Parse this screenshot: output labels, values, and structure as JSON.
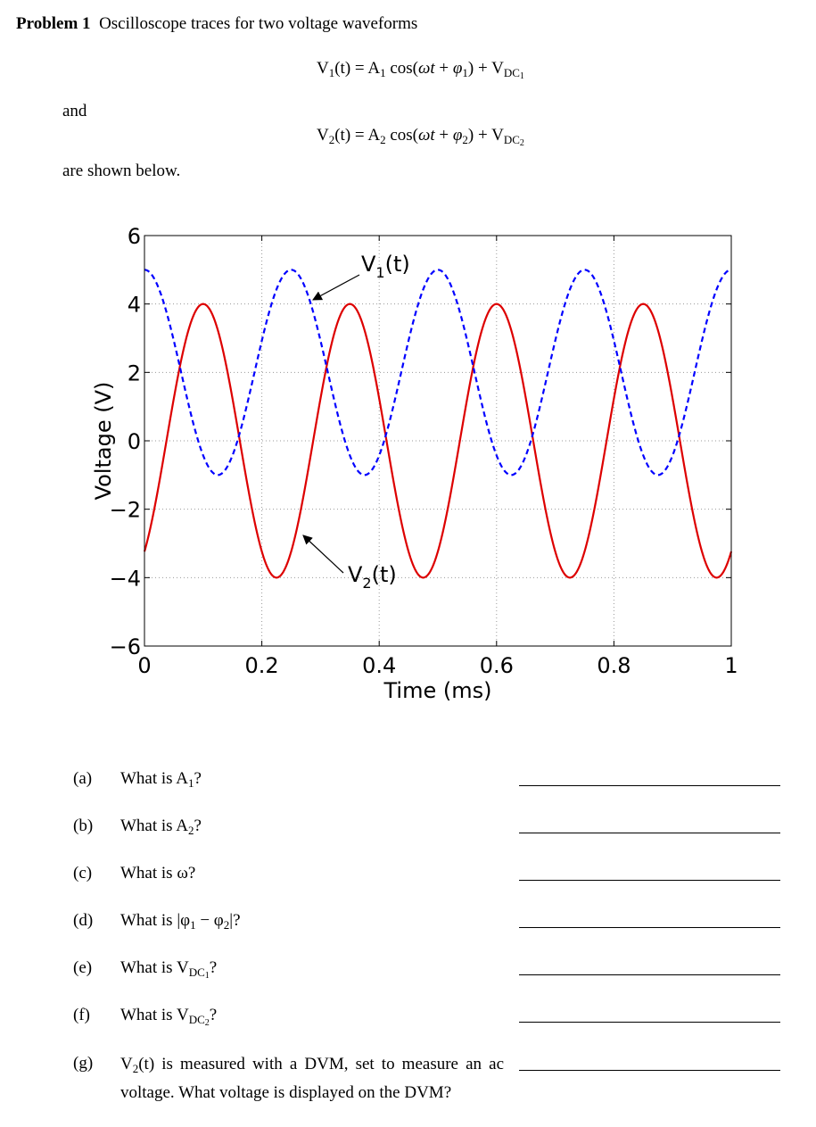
{
  "problem": {
    "label": "Problem 1",
    "intro": "Oscilloscope traces for two voltage waveforms"
  },
  "equations": {
    "v1": {
      "lhs": "V",
      "lhs_sub": "1",
      "arg": "(t) = A",
      "amp_sub": "1",
      "cos": " cos(",
      "omega": "ω",
      "t": "t",
      "plus": " + ",
      "phi": "φ",
      "phi_sub": "1",
      "close": ") + V",
      "dc": "DC",
      "dc_sub": "1"
    },
    "v2": {
      "lhs": "V",
      "lhs_sub": "2",
      "arg": "(t) = A",
      "amp_sub": "2",
      "cos": " cos(",
      "omega": "ω",
      "t": "t",
      "plus": " + ",
      "phi": "φ",
      "phi_sub": "2",
      "close": ") + V",
      "dc": "DC",
      "dc_sub": "2"
    }
  },
  "text": {
    "and": "and",
    "shown": "are shown below."
  },
  "chart_data": {
    "type": "line",
    "xlabel": "Time (ms)",
    "ylabel": "Voltage (V)",
    "xlim": [
      0,
      1
    ],
    "ylim": [
      -6,
      6
    ],
    "xticks": [
      "0",
      "0.2",
      "0.4",
      "0.6",
      "0.8",
      "1"
    ],
    "yticks": [
      "6",
      "4",
      "2",
      "0",
      "−2",
      "−4",
      "−6"
    ],
    "grid": true,
    "series": [
      {
        "name": "V1(t)",
        "label_main": "V",
        "label_sub": "1",
        "label_tail": "(t)",
        "amplitude": 3,
        "offset": 2,
        "period_ms": 0.25,
        "phase_rad": 0,
        "color": "#0000ff",
        "style": "dashed"
      },
      {
        "name": "V2(t)",
        "label_main": "V",
        "label_sub": "2",
        "label_tail": "(t)",
        "amplitude": 4,
        "offset": 0,
        "period_ms": 0.25,
        "phase_rad": -2.513,
        "color": "#dd0000",
        "style": "solid"
      }
    ]
  },
  "questions": [
    {
      "label": "(a)",
      "pre": "What is A",
      "sub": "1",
      "post": "?"
    },
    {
      "label": "(b)",
      "pre": "What is A",
      "sub": "2",
      "post": "?"
    },
    {
      "label": "(c)",
      "pre": "What is ω?",
      "sub": "",
      "post": ""
    },
    {
      "label": "(d)",
      "pre": "What is |φ",
      "sub": "1",
      "mid": " − φ",
      "sub2": "2",
      "post": "|?"
    },
    {
      "label": "(e)",
      "pre": "What is V",
      "sub": "DC",
      "subsub": "1",
      "post": "?"
    },
    {
      "label": "(f)",
      "pre": "What is V",
      "sub": "DC",
      "subsub": "2",
      "post": "?"
    },
    {
      "label": "(g)",
      "pre": "V",
      "sub": "2",
      "post": "(t) is measured with a DVM, set to measure an ac voltage.  What voltage is displayed on the DVM?"
    }
  ]
}
